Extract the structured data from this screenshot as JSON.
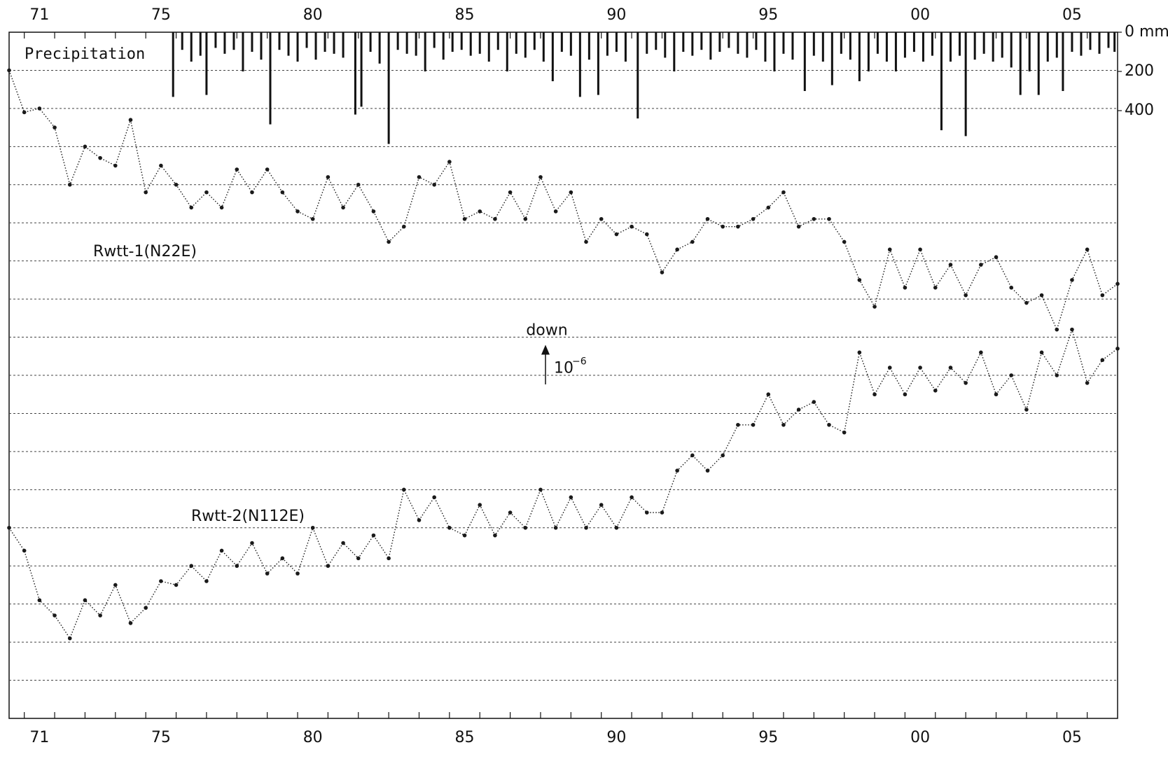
{
  "chart_data": {
    "type": "scatter",
    "xlim": [
      1970.5,
      2007
    ],
    "xticks": [
      {
        "value": 1971.5,
        "label": "71"
      },
      {
        "value": 1975.5,
        "label": "75"
      },
      {
        "value": 1980.5,
        "label": "80"
      },
      {
        "value": 1985.5,
        "label": "85"
      },
      {
        "value": 1990.5,
        "label": "90"
      },
      {
        "value": 1995.5,
        "label": "95"
      },
      {
        "value": 2000.5,
        "label": "00"
      },
      {
        "value": 2005.5,
        "label": "05"
      }
    ],
    "xminorticks": [
      1971,
      1972,
      1973,
      1974,
      1975,
      1976,
      1977,
      1978,
      1979,
      1980,
      1981,
      1982,
      1983,
      1984,
      1985,
      1986,
      1987,
      1988,
      1989,
      1990,
      1991,
      1992,
      1993,
      1994,
      1995,
      1996,
      1997,
      1998,
      1999,
      2000,
      2001,
      2002,
      2003,
      2004,
      2005,
      2006
    ],
    "ylim": [
      0,
      18
    ],
    "ygrid": [
      1,
      2,
      3,
      4,
      5,
      6,
      7,
      8,
      9,
      10,
      11,
      12,
      13,
      14,
      15,
      16,
      17
    ],
    "grid": true,
    "x": [
      1970.5,
      1971,
      1971.5,
      1972,
      1972.5,
      1973,
      1973.5,
      1974,
      1974.5,
      1975,
      1975.5,
      1976,
      1976.5,
      1977,
      1977.5,
      1978,
      1978.5,
      1979,
      1979.5,
      1980,
      1980.5,
      1981,
      1981.5,
      1982,
      1982.5,
      1983,
      1983.5,
      1984,
      1984.5,
      1985,
      1985.5,
      1986,
      1986.5,
      1987,
      1987.5,
      1988,
      1988.5,
      1989,
      1989.5,
      1990,
      1990.5,
      1991,
      1991.5,
      1992,
      1992.5,
      1993,
      1993.5,
      1994,
      1994.5,
      1995,
      1995.5,
      1996,
      1996.5,
      1997,
      1997.5,
      1998,
      1998.5,
      1999,
      1999.5,
      2000,
      2000.5,
      2001,
      2001.5,
      2002,
      2002.5,
      2003,
      2003.5,
      2004,
      2004.5,
      2005,
      2005.5,
      2006,
      2006.5,
      2007
    ],
    "series": [
      {
        "name": "Rwtt-1(N22E)",
        "color": "#1a1a1a",
        "values": [
          17.0,
          15.9,
          16.0,
          15.5,
          14.0,
          15.0,
          14.7,
          14.5,
          15.7,
          13.8,
          14.5,
          14.0,
          13.4,
          13.8,
          13.4,
          14.4,
          13.8,
          14.4,
          13.8,
          13.3,
          13.1,
          14.2,
          13.4,
          14.0,
          13.3,
          12.5,
          12.9,
          14.2,
          14.0,
          14.6,
          13.1,
          13.3,
          13.1,
          13.8,
          13.1,
          14.2,
          13.3,
          13.8,
          12.5,
          13.1,
          12.7,
          12.9,
          12.7,
          11.7,
          12.3,
          12.5,
          13.1,
          12.9,
          12.9,
          13.1,
          13.4,
          13.8,
          12.9,
          13.1,
          13.1,
          12.5,
          11.5,
          10.8,
          12.3,
          11.3,
          12.3,
          11.3,
          11.9,
          11.1,
          11.9,
          12.1,
          11.3,
          10.9,
          11.1,
          10.2,
          11.5,
          12.3,
          11.1,
          11.4
        ]
      },
      {
        "name": "Rwtt-2(N112E)",
        "color": "#1a1a1a",
        "values": [
          5.0,
          4.4,
          3.1,
          2.7,
          2.1,
          3.1,
          2.7,
          3.5,
          2.5,
          2.9,
          3.6,
          3.5,
          4.0,
          3.6,
          4.4,
          4.0,
          4.6,
          3.8,
          4.2,
          3.8,
          5.0,
          4.0,
          4.6,
          4.2,
          4.8,
          4.2,
          6.0,
          5.2,
          5.8,
          5.0,
          4.8,
          5.6,
          4.8,
          5.4,
          5.0,
          6.0,
          5.0,
          5.8,
          5.0,
          5.6,
          5.0,
          5.8,
          5.4,
          5.4,
          6.5,
          6.9,
          6.5,
          6.9,
          7.7,
          7.7,
          8.5,
          7.7,
          8.1,
          8.3,
          7.7,
          7.5,
          9.6,
          8.5,
          9.2,
          8.5,
          9.2,
          8.6,
          9.2,
          8.8,
          9.6,
          8.5,
          9.0,
          8.1,
          9.6,
          9.0,
          10.2,
          8.8,
          9.4,
          9.7
        ]
      }
    ],
    "annotations": {
      "direction": "down",
      "scale_label": "10",
      "scale_exponent": "−6",
      "scale_length": 1
    },
    "y2lim": [
      3500,
      0
    ],
    "y2ticks": [
      {
        "value": 0,
        "label": "0 mm"
      },
      200,
      400
    ],
    "precipitation": {
      "name": "Precipitation",
      "type": "bar",
      "axis": "y2",
      "color": "#111111",
      "x": [
        1975.9,
        1976.2,
        1976.5,
        1976.8,
        1977.0,
        1977.3,
        1977.6,
        1977.9,
        1978.2,
        1978.5,
        1978.8,
        1979.1,
        1979.4,
        1979.7,
        1980.0,
        1980.3,
        1980.6,
        1980.9,
        1981.2,
        1981.5,
        1981.9,
        1982.1,
        1982.4,
        1982.7,
        1983.0,
        1983.3,
        1983.6,
        1983.9,
        1984.2,
        1984.5,
        1984.8,
        1985.1,
        1985.4,
        1985.7,
        1986.0,
        1986.3,
        1986.6,
        1986.9,
        1987.2,
        1987.5,
        1987.8,
        1988.1,
        1988.4,
        1988.7,
        1989.0,
        1989.3,
        1989.6,
        1989.9,
        1990.2,
        1990.5,
        1990.8,
        1991.2,
        1991.5,
        1991.8,
        1992.1,
        1992.4,
        1992.7,
        1993.0,
        1993.3,
        1993.6,
        1993.9,
        1994.2,
        1994.5,
        1994.8,
        1995.1,
        1995.4,
        1995.7,
        1996.0,
        1996.3,
        1996.7,
        1997.0,
        1997.3,
        1997.6,
        1997.9,
        1998.2,
        1998.5,
        1998.8,
        1999.1,
        1999.4,
        1999.7,
        2000.0,
        2000.3,
        2000.6,
        2000.9,
        2001.2,
        2001.5,
        2001.8,
        2002.0,
        2002.3,
        2002.6,
        2002.9,
        2003.2,
        2003.5,
        2003.8,
        2004.1,
        2004.4,
        2004.7,
        2005.0,
        2005.2,
        2005.5,
        2005.8,
        2006.1,
        2006.4,
        2006.7,
        2006.9
      ],
      "values": [
        330,
        90,
        150,
        120,
        320,
        80,
        110,
        90,
        200,
        100,
        140,
        470,
        90,
        120,
        150,
        80,
        140,
        100,
        110,
        130,
        420,
        380,
        100,
        160,
        570,
        90,
        110,
        120,
        200,
        80,
        140,
        100,
        90,
        120,
        110,
        150,
        90,
        200,
        110,
        130,
        90,
        150,
        250,
        100,
        120,
        330,
        140,
        320,
        120,
        100,
        150,
        440,
        110,
        90,
        130,
        200,
        100,
        120,
        90,
        140,
        100,
        80,
        110,
        130,
        90,
        150,
        200,
        110,
        140,
        300,
        120,
        150,
        270,
        110,
        140,
        250,
        200,
        110,
        150,
        200,
        130,
        100,
        150,
        120,
        500,
        150,
        120,
        530,
        140,
        110,
        150,
        130,
        180,
        320,
        200,
        320,
        150,
        130,
        300,
        100,
        120,
        90,
        110,
        80,
        100
      ]
    }
  }
}
